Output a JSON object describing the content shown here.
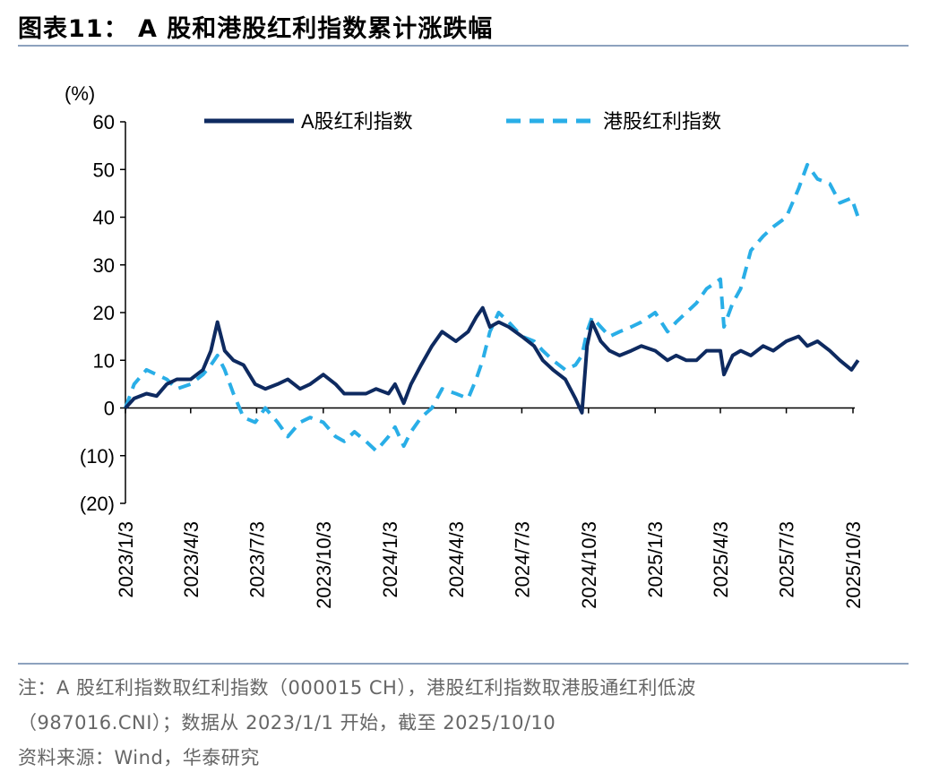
{
  "title": "图表11：  A 股和港股红利指数累计涨跌幅",
  "notes": {
    "line1": "注：A 股红利指数取红利指数（000015 CH），港股红利指数取港股通红利低波",
    "line2": "（987016.CNI）；数据从 2023/1/1 开始，截至 2025/10/10",
    "line3": "资料来源：Wind，华泰研究"
  },
  "colors": {
    "a_share": "#0e2a60",
    "hk": "#29aee7",
    "rule": "#8da2be"
  },
  "chart_data": {
    "type": "line",
    "ylabel": "(%)",
    "ylim": [
      -20,
      60
    ],
    "yticks": [
      60,
      50,
      40,
      30,
      20,
      10,
      0,
      -10,
      -20
    ],
    "ytick_labels": [
      "60",
      "50",
      "40",
      "30",
      "20",
      "10",
      "0",
      "(10)",
      "(20)"
    ],
    "x_date_range": [
      "2023-01-03",
      "2025-10-10"
    ],
    "xticks": [
      "2023-01-03",
      "2023-04-03",
      "2023-07-03",
      "2023-10-03",
      "2024-01-03",
      "2024-04-03",
      "2024-07-03",
      "2024-10-03",
      "2025-01-03",
      "2025-04-03",
      "2025-07-03",
      "2025-10-03"
    ],
    "xtick_labels": [
      "2023/1/3",
      "2023/4/3",
      "2023/7/3",
      "2023/10/3",
      "2024/1/3",
      "2024/4/3",
      "2024/7/3",
      "2024/10/3",
      "2025/1/3",
      "2025/4/3",
      "2025/7/3",
      "2025/10/3"
    ],
    "legend_position": "top",
    "series": [
      {
        "name": "A股红利指数",
        "style": "solid",
        "points": [
          [
            "2023-01-03",
            0
          ],
          [
            "2023-01-15",
            2
          ],
          [
            "2023-02-01",
            3
          ],
          [
            "2023-02-15",
            2.5
          ],
          [
            "2023-03-01",
            5
          ],
          [
            "2023-03-15",
            6
          ],
          [
            "2023-04-03",
            6
          ],
          [
            "2023-04-20",
            8
          ],
          [
            "2023-05-01",
            12
          ],
          [
            "2023-05-10",
            18
          ],
          [
            "2023-05-20",
            12
          ],
          [
            "2023-06-01",
            10
          ],
          [
            "2023-06-15",
            9
          ],
          [
            "2023-07-01",
            5
          ],
          [
            "2023-07-15",
            4
          ],
          [
            "2023-08-01",
            5
          ],
          [
            "2023-08-15",
            6
          ],
          [
            "2023-09-01",
            4
          ],
          [
            "2023-09-15",
            5
          ],
          [
            "2023-10-03",
            7
          ],
          [
            "2023-10-20",
            5
          ],
          [
            "2023-11-01",
            3
          ],
          [
            "2023-11-15",
            3
          ],
          [
            "2023-12-01",
            3
          ],
          [
            "2023-12-15",
            4
          ],
          [
            "2024-01-01",
            3
          ],
          [
            "2024-01-10",
            5
          ],
          [
            "2024-01-22",
            1
          ],
          [
            "2024-02-01",
            5
          ],
          [
            "2024-02-15",
            9
          ],
          [
            "2024-03-01",
            13
          ],
          [
            "2024-03-15",
            16
          ],
          [
            "2024-04-03",
            14
          ],
          [
            "2024-04-20",
            16
          ],
          [
            "2024-05-01",
            19
          ],
          [
            "2024-05-10",
            21
          ],
          [
            "2024-05-20",
            17
          ],
          [
            "2024-06-01",
            18
          ],
          [
            "2024-06-15",
            17
          ],
          [
            "2024-07-03",
            15
          ],
          [
            "2024-07-20",
            13
          ],
          [
            "2024-08-01",
            10
          ],
          [
            "2024-08-15",
            8
          ],
          [
            "2024-09-01",
            6
          ],
          [
            "2024-09-15",
            2
          ],
          [
            "2024-09-24",
            -1
          ],
          [
            "2024-10-01",
            13
          ],
          [
            "2024-10-08",
            18
          ],
          [
            "2024-10-20",
            14
          ],
          [
            "2024-11-01",
            12
          ],
          [
            "2024-11-15",
            11
          ],
          [
            "2024-12-01",
            12
          ],
          [
            "2024-12-15",
            13
          ],
          [
            "2025-01-03",
            12
          ],
          [
            "2025-01-20",
            10
          ],
          [
            "2025-02-01",
            11
          ],
          [
            "2025-02-15",
            10
          ],
          [
            "2025-03-01",
            10
          ],
          [
            "2025-03-15",
            12
          ],
          [
            "2025-04-03",
            12
          ],
          [
            "2025-04-08",
            7
          ],
          [
            "2025-04-20",
            11
          ],
          [
            "2025-05-01",
            12
          ],
          [
            "2025-05-15",
            11
          ],
          [
            "2025-06-01",
            13
          ],
          [
            "2025-06-15",
            12
          ],
          [
            "2025-07-03",
            14
          ],
          [
            "2025-07-20",
            15
          ],
          [
            "2025-08-01",
            13
          ],
          [
            "2025-08-15",
            14
          ],
          [
            "2025-09-01",
            12
          ],
          [
            "2025-09-15",
            10
          ],
          [
            "2025-10-01",
            8
          ],
          [
            "2025-10-10",
            10
          ]
        ]
      },
      {
        "name": "港股红利指数",
        "style": "dashed",
        "points": [
          [
            "2023-01-03",
            0
          ],
          [
            "2023-01-15",
            5
          ],
          [
            "2023-02-01",
            8
          ],
          [
            "2023-02-15",
            7
          ],
          [
            "2023-03-01",
            6
          ],
          [
            "2023-03-15",
            4
          ],
          [
            "2023-04-03",
            5
          ],
          [
            "2023-04-20",
            7
          ],
          [
            "2023-05-01",
            9
          ],
          [
            "2023-05-10",
            11
          ],
          [
            "2023-05-20",
            8
          ],
          [
            "2023-06-01",
            3
          ],
          [
            "2023-06-15",
            -2
          ],
          [
            "2023-07-01",
            -3
          ],
          [
            "2023-07-15",
            0
          ],
          [
            "2023-08-01",
            -3
          ],
          [
            "2023-08-15",
            -6
          ],
          [
            "2023-09-01",
            -3
          ],
          [
            "2023-09-15",
            -2
          ],
          [
            "2023-10-03",
            -3
          ],
          [
            "2023-10-20",
            -6
          ],
          [
            "2023-11-01",
            -7
          ],
          [
            "2023-11-15",
            -5
          ],
          [
            "2023-12-01",
            -7
          ],
          [
            "2023-12-15",
            -9
          ],
          [
            "2024-01-01",
            -6
          ],
          [
            "2024-01-10",
            -4
          ],
          [
            "2024-01-22",
            -8
          ],
          [
            "2024-02-01",
            -5
          ],
          [
            "2024-02-15",
            -2
          ],
          [
            "2024-03-01",
            0
          ],
          [
            "2024-03-15",
            4
          ],
          [
            "2024-04-03",
            3
          ],
          [
            "2024-04-20",
            2
          ],
          [
            "2024-05-01",
            6
          ],
          [
            "2024-05-10",
            10
          ],
          [
            "2024-05-20",
            16
          ],
          [
            "2024-06-01",
            20
          ],
          [
            "2024-06-15",
            18
          ],
          [
            "2024-07-03",
            15
          ],
          [
            "2024-07-20",
            14
          ],
          [
            "2024-08-01",
            12
          ],
          [
            "2024-08-15",
            10
          ],
          [
            "2024-09-01",
            8
          ],
          [
            "2024-09-15",
            9
          ],
          [
            "2024-09-24",
            11
          ],
          [
            "2024-10-01",
            16
          ],
          [
            "2024-10-08",
            19
          ],
          [
            "2024-10-20",
            17
          ],
          [
            "2024-11-01",
            15
          ],
          [
            "2024-11-15",
            16
          ],
          [
            "2024-12-01",
            17
          ],
          [
            "2024-12-15",
            18
          ],
          [
            "2025-01-03",
            20
          ],
          [
            "2025-01-20",
            16
          ],
          [
            "2025-02-01",
            18
          ],
          [
            "2025-02-15",
            20
          ],
          [
            "2025-03-01",
            22
          ],
          [
            "2025-03-15",
            25
          ],
          [
            "2025-04-03",
            27
          ],
          [
            "2025-04-08",
            17
          ],
          [
            "2025-04-20",
            22
          ],
          [
            "2025-05-01",
            25
          ],
          [
            "2025-05-15",
            33
          ],
          [
            "2025-06-01",
            36
          ],
          [
            "2025-06-15",
            38
          ],
          [
            "2025-07-03",
            40
          ],
          [
            "2025-07-20",
            46
          ],
          [
            "2025-08-01",
            51
          ],
          [
            "2025-08-15",
            48
          ],
          [
            "2025-09-01",
            47
          ],
          [
            "2025-09-15",
            43
          ],
          [
            "2025-10-01",
            44
          ],
          [
            "2025-10-10",
            40
          ]
        ]
      }
    ]
  }
}
